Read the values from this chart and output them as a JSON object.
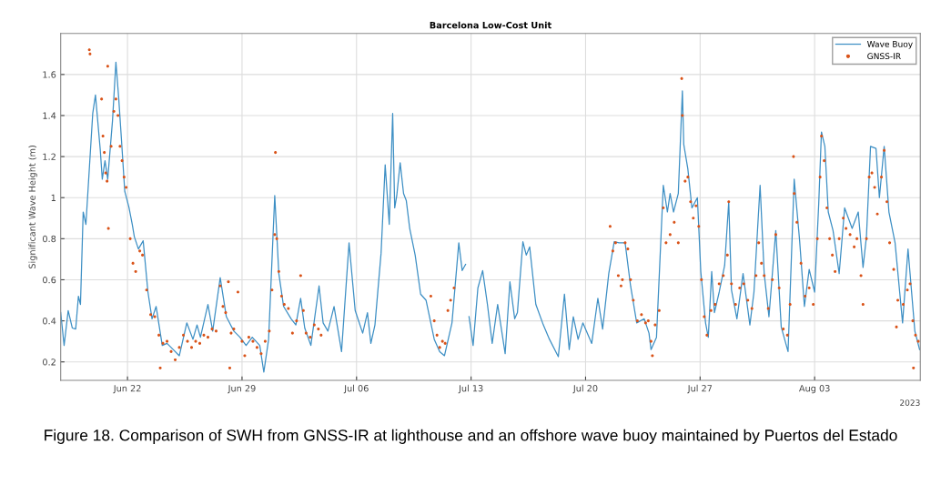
{
  "chart_data": {
    "type": "line",
    "title": "Barcelona Low-Cost Unit",
    "ylabel": "Significant Wave Height (m)",
    "annotations": [
      "2023",
      "Figure 18. Comparison of SWH from GNSS-IR at lighthouse and an offshore wave buoy maintained by Puertos del Estado"
    ],
    "xlim": [
      "2023-06-17T22:00",
      "2023-08-09T11:00"
    ],
    "xticks": [
      {
        "value": "2023-06-22",
        "label": "Jun 22"
      },
      {
        "value": "2023-06-29",
        "label": "Jun 29"
      },
      {
        "value": "2023-07-06",
        "label": "Jul 06"
      },
      {
        "value": "2023-07-13",
        "label": "Jul 13"
      },
      {
        "value": "2023-07-20",
        "label": "Jul 20"
      },
      {
        "value": "2023-07-27",
        "label": "Jul 27"
      },
      {
        "value": "2023-08-03",
        "label": "Aug 03"
      }
    ],
    "ylim": [
      0.11,
      1.8
    ],
    "yticks": [
      0.2,
      0.4,
      0.6,
      0.8,
      1,
      1.2,
      1.4,
      1.6
    ],
    "grid": true,
    "legend": "top right",
    "series": [
      {
        "name": "Wave Buoy",
        "color": "#3d8fc4",
        "marker": "none",
        "x": [
          "2023-06-17T22:00",
          "2023-06-18T03:00",
          "2023-06-18T09:00",
          "2023-06-18T15:00",
          "2023-06-18T20:00",
          "2023-06-19T00:00",
          "2023-06-19T03:00",
          "2023-06-19T07:00",
          "2023-06-19T11:00",
          "2023-06-19T21:00",
          "2023-06-20T01:00",
          "2023-06-20T08:00",
          "2023-06-20T11:00",
          "2023-06-20T15:00",
          "2023-06-20T19:00",
          "2023-06-21T02:00",
          "2023-06-21T07:00",
          "2023-06-21T11:00",
          "2023-06-21T15:00",
          "2023-06-21T20:00",
          "2023-06-22T02:00",
          "2023-06-22T07:00",
          "2023-06-22T10:00",
          "2023-06-22T16:00",
          "2023-06-22T23:00",
          "2023-06-23T06:00",
          "2023-06-23T12:00",
          "2023-06-23T18:00",
          "2023-06-24T03:00",
          "2023-06-24T10:00",
          "2023-06-24T19:00",
          "2023-06-25T04:00",
          "2023-06-25T15:00",
          "2023-06-26T00:00",
          "2023-06-26T06:00",
          "2023-06-26T11:00",
          "2023-06-26T22:00",
          "2023-06-27T05:00",
          "2023-06-27T16:00",
          "2023-06-28T01:00",
          "2023-06-28T12:00",
          "2023-06-28T21:00",
          "2023-06-29T06:00",
          "2023-06-29T15:00",
          "2023-06-30T02:00",
          "2023-06-30T08:00",
          "2023-06-30T15:00",
          "2023-07-01T00:00",
          "2023-07-01T06:00",
          "2023-07-01T13:00",
          "2023-07-02T00:00",
          "2023-07-02T07:00",
          "2023-07-02T14:00",
          "2023-07-02T20:00",
          "2023-07-03T05:00",
          "2023-07-03T17:00",
          "2023-07-03T23:00",
          "2023-07-04T06:00",
          "2023-07-04T15:00",
          "2023-07-05T02:00",
          "2023-07-05T13:00",
          "2023-07-05T22:00",
          "2023-07-06T09:00",
          "2023-07-06T16:00",
          "2023-07-06T21:00",
          "2023-07-07T03:00",
          "2023-07-07T12:00",
          "2023-07-07T18:00",
          "2023-07-08T00:00",
          "2023-07-08T05:00",
          "2023-07-08T08:00",
          "2023-07-08T11:00",
          "2023-07-08T16:00",
          "2023-07-08T21:00",
          "2023-07-09T01:00",
          "2023-07-09T06:00",
          "2023-07-09T14:00",
          "2023-07-09T22:00",
          "2023-07-10T06:00",
          "2023-07-10T18:00",
          "2023-07-11T02:00",
          "2023-07-11T09:00",
          "2023-07-11T20:00",
          "2023-07-12T06:00",
          "2023-07-12T11:00",
          "2023-07-12T16:00",
          "2023-07-12T18:00",
          "2023-07-12T21:00",
          "2023-07-13T03:00",
          "2023-07-13T10:00",
          "2023-07-13T17:00",
          "2023-07-14T00:00",
          "2023-07-14T07:00",
          "2023-07-14T15:00",
          "2023-07-15T02:00",
          "2023-07-15T09:00",
          "2023-07-15T16:00",
          "2023-07-15T20:00",
          "2023-07-16T04:00",
          "2023-07-16T09:00",
          "2023-07-16T14:00",
          "2023-07-16T23:00",
          "2023-07-17T10:00",
          "2023-07-17T19:00",
          "2023-07-18T08:00",
          "2023-07-18T17:00",
          "2023-07-19T00:00",
          "2023-07-19T06:00",
          "2023-07-19T13:00",
          "2023-07-19T20:00",
          "2023-07-20T09:00",
          "2023-07-20T18:00",
          "2023-07-21T01:00",
          "2023-07-21T10:00",
          "2023-07-21T18:00",
          "2023-07-22T01:00",
          "2023-07-22T10:00",
          "2023-07-22T18:00",
          "2023-07-23T03:00",
          "2023-07-23T14:00",
          "2023-07-23T21:00",
          "2023-07-24T00:00",
          "2023-07-24T08:00",
          "2023-07-24T18:00",
          "2023-07-25T00:00",
          "2023-07-25T04:00",
          "2023-07-25T09:00",
          "2023-07-25T16:00",
          "2023-07-25T22:00",
          "2023-07-26T00:00",
          "2023-07-26T06:00",
          "2023-07-26T12:00",
          "2023-07-26T20:00",
          "2023-07-27T01:00",
          "2023-07-27T08:00",
          "2023-07-27T12:00",
          "2023-07-27T17:00",
          "2023-07-27T21:00",
          "2023-07-28T04:00",
          "2023-07-28T12:00",
          "2023-07-28T18:00",
          "2023-07-28T22:00",
          "2023-07-29T06:00",
          "2023-07-29T15:00",
          "2023-07-30T01:00",
          "2023-07-30T07:00",
          "2023-07-30T16:00",
          "2023-07-30T22:00",
          "2023-07-31T05:00",
          "2023-07-31T15:00",
          "2023-07-31T23:00",
          "2023-08-01T09:00",
          "2023-08-01T18:00",
          "2023-08-02T02:00",
          "2023-08-02T09:00",
          "2023-08-02T16:00",
          "2023-08-03T00:00",
          "2023-08-03T06:00",
          "2023-08-03T10:00",
          "2023-08-03T15:00",
          "2023-08-03T20:00",
          "2023-08-04T03:00",
          "2023-08-04T12:00",
          "2023-08-04T20:00",
          "2023-08-05T07:00",
          "2023-08-05T16:00",
          "2023-08-05T23:00",
          "2023-08-06T04:00",
          "2023-08-06T10:00",
          "2023-08-06T18:00",
          "2023-08-06T23:00",
          "2023-08-07T06:00",
          "2023-08-07T13:00",
          "2023-08-07T22:00",
          "2023-08-08T09:00",
          "2023-08-08T17:00",
          "2023-08-08T20:00",
          "2023-08-09T03:00",
          "2023-08-09T10:00"
        ],
        "values": [
          0.44,
          0.28,
          0.45,
          0.365,
          0.36,
          0.52,
          0.48,
          0.93,
          0.87,
          1.41,
          1.5,
          1.235,
          1.09,
          1.18,
          1.09,
          1.375,
          1.66,
          1.49,
          1.29,
          1.03,
          0.955,
          0.87,
          0.81,
          0.75,
          0.79,
          0.54,
          0.41,
          0.47,
          0.28,
          0.29,
          0.26,
          0.23,
          0.39,
          0.31,
          0.38,
          0.32,
          0.48,
          0.35,
          0.61,
          0.42,
          0.35,
          0.32,
          0.28,
          0.32,
          0.28,
          0.15,
          0.31,
          1.01,
          0.63,
          0.47,
          0.41,
          0.38,
          0.51,
          0.365,
          0.28,
          0.57,
          0.39,
          0.35,
          0.47,
          0.25,
          0.78,
          0.45,
          0.34,
          0.44,
          0.29,
          0.38,
          0.73,
          1.16,
          0.87,
          1.41,
          0.95,
          1.01,
          1.17,
          1.02,
          0.985,
          0.85,
          0.72,
          0.53,
          0.5,
          0.31,
          0.25,
          0.23,
          0.39,
          0.78,
          0.645,
          0.675,
          null,
          0.42,
          0.28,
          0.56,
          0.645,
          0.48,
          0.29,
          0.48,
          0.24,
          0.59,
          0.41,
          0.44,
          0.785,
          0.72,
          0.76,
          0.48,
          0.38,
          0.31,
          0.225,
          0.53,
          0.26,
          0.42,
          0.31,
          0.39,
          0.29,
          0.51,
          0.36,
          0.63,
          0.785,
          0.78,
          0.78,
          0.57,
          0.39,
          0.41,
          0.34,
          0.26,
          0.32,
          1.06,
          0.93,
          1.02,
          0.93,
          1.02,
          1.52,
          1.26,
          1.14,
          0.95,
          1.0,
          0.64,
          0.39,
          0.32,
          0.64,
          0.44,
          0.54,
          0.67,
          0.98,
          0.55,
          0.41,
          0.63,
          0.38,
          0.54,
          1.06,
          0.63,
          0.42,
          0.84,
          0.37,
          0.25,
          1.09,
          0.79,
          0.47,
          0.65,
          0.54,
          0.97,
          1.32,
          1.25,
          0.93,
          0.84,
          0.63,
          0.95,
          0.85,
          0.93,
          0.66,
          0.81,
          1.25,
          1.24,
          1.0,
          1.25,
          0.93,
          0.78,
          0.39,
          0.75,
          0.63,
          0.35,
          0.26
        ]
      },
      {
        "name": "GNSS-IR",
        "type": "scatter",
        "color": "#d95319",
        "marker": "circle",
        "x": [
          "2023-06-19T16:00",
          "2023-06-19T17:00",
          "2023-06-20T10:00",
          "2023-06-20T12:00",
          "2023-06-20T14:00",
          "2023-06-20T16:00",
          "2023-06-20T18:00",
          "2023-06-20T20:00",
          "2023-06-20T19:00",
          "2023-06-21T00:00",
          "2023-06-21T04:00",
          "2023-06-21T07:00",
          "2023-06-21T10:00",
          "2023-06-21T13:00",
          "2023-06-21T16:00",
          "2023-06-21T19:00",
          "2023-06-21T22:00",
          "2023-06-22T04:00",
          "2023-06-22T08:00",
          "2023-06-22T12:00",
          "2023-06-22T18:00",
          "2023-06-22T22:00",
          "2023-06-23T04:00",
          "2023-06-23T10:00",
          "2023-06-23T16:00",
          "2023-06-23T22:00",
          "2023-06-24T00:00",
          "2023-06-24T04:00",
          "2023-06-24T10:00",
          "2023-06-24T16:00",
          "2023-06-24T22:00",
          "2023-06-25T04:00",
          "2023-06-25T10:00",
          "2023-06-25T16:00",
          "2023-06-25T22:00",
          "2023-06-26T04:00",
          "2023-06-26T10:00",
          "2023-06-26T16:00",
          "2023-06-26T22:00",
          "2023-06-27T04:00",
          "2023-06-27T10:00",
          "2023-06-27T16:00",
          "2023-06-27T20:00",
          "2023-06-28T00:00",
          "2023-06-28T04:00",
          "2023-06-28T06:00",
          "2023-06-28T08:00",
          "2023-06-28T12:00",
          "2023-06-28T18:00",
          "2023-06-29T00:00",
          "2023-06-29T04:00",
          "2023-06-29T10:00",
          "2023-06-29T16:00",
          "2023-06-29T22:00",
          "2023-06-30T04:00",
          "2023-06-30T10:00",
          "2023-06-30T16:00",
          "2023-06-30T20:00",
          "2023-07-01T00:00",
          "2023-07-01T01:00",
          "2023-07-01T03:00",
          "2023-07-01T06:00",
          "2023-07-01T10:00",
          "2023-07-01T14:00",
          "2023-07-01T20:00",
          "2023-07-02T02:00",
          "2023-07-02T08:00",
          "2023-07-02T14:00",
          "2023-07-02T18:00",
          "2023-07-02T22:00",
          "2023-07-03T04:00",
          "2023-07-03T10:00",
          "2023-07-03T16:00",
          "2023-07-03T20:00",
          "2023-07-10T13:00",
          "2023-07-10T18:00",
          "2023-07-10T22:00",
          "2023-07-11T02:00",
          "2023-07-11T06:00",
          "2023-07-11T10:00",
          "2023-07-11T14:00",
          "2023-07-11T18:00",
          "2023-07-11T23:00",
          "2023-07-21T12:00",
          "2023-07-21T16:00",
          "2023-07-21T20:00",
          "2023-07-22T00:00",
          "2023-07-22T04:00",
          "2023-07-22T06:00",
          "2023-07-22T10:00",
          "2023-07-22T14:00",
          "2023-07-22T18:00",
          "2023-07-22T22:00",
          "2023-07-23T04:00",
          "2023-07-23T10:00",
          "2023-07-23T16:00",
          "2023-07-23T20:00",
          "2023-07-24T00:00",
          "2023-07-24T02:00",
          "2023-07-24T06:00",
          "2023-07-24T12:00",
          "2023-07-24T18:00",
          "2023-07-24T22:00",
          "2023-07-25T04:00",
          "2023-07-25T10:00",
          "2023-07-25T16:00",
          "2023-07-25T21:00",
          "2023-07-25T22:00",
          "2023-07-26T02:00",
          "2023-07-26T06:00",
          "2023-07-26T10:00",
          "2023-07-26T14:00",
          "2023-07-26T18:00",
          "2023-07-26T22:00",
          "2023-07-27T02:00",
          "2023-07-27T06:00",
          "2023-07-27T10:00",
          "2023-07-27T16:00",
          "2023-07-27T22:00",
          "2023-07-28T04:00",
          "2023-07-28T10:00",
          "2023-07-28T16:00",
          "2023-07-28T18:00",
          "2023-07-28T22:00",
          "2023-07-29T04:00",
          "2023-07-29T10:00",
          "2023-07-29T16:00",
          "2023-07-29T22:00",
          "2023-07-30T04:00",
          "2023-07-30T10:00",
          "2023-07-30T14:00",
          "2023-07-30T18:00",
          "2023-07-30T22:00",
          "2023-07-31T04:00",
          "2023-07-31T10:00",
          "2023-07-31T15:00",
          "2023-07-31T20:00",
          "2023-08-01T02:00",
          "2023-08-01T08:00",
          "2023-08-01T12:00",
          "2023-08-01T17:00",
          "2023-08-01T18:00",
          "2023-08-01T22:00",
          "2023-08-02T04:00",
          "2023-08-02T10:00",
          "2023-08-02T16:00",
          "2023-08-02T22:00",
          "2023-08-03T04:00",
          "2023-08-03T08:00",
          "2023-08-03T10:00",
          "2023-08-03T14:00",
          "2023-08-03T18:00",
          "2023-08-03T22:00",
          "2023-08-04T02:00",
          "2023-08-04T06:00",
          "2023-08-04T12:00",
          "2023-08-04T18:00",
          "2023-08-04T22:00",
          "2023-08-05T04:00",
          "2023-08-05T10:00",
          "2023-08-05T14:00",
          "2023-08-05T20:00",
          "2023-08-05T23:00",
          "2023-08-06T04:00",
          "2023-08-06T08:00",
          "2023-08-06T12:00",
          "2023-08-06T16:00",
          "2023-08-06T20:00",
          "2023-08-07T02:00",
          "2023-08-07T06:00",
          "2023-08-07T10:00",
          "2023-08-07T14:00",
          "2023-08-07T20:00",
          "2023-08-08T00:00",
          "2023-08-08T02:00",
          "2023-08-08T10:00",
          "2023-08-08T16:00",
          "2023-08-08T20:00",
          "2023-08-09T00:00",
          "2023-08-09T01:00",
          "2023-08-09T04:00",
          "2023-08-09T08:00"
        ],
        "values": [
          1.72,
          1.7,
          1.48,
          1.3,
          1.22,
          1.12,
          1.08,
          0.85,
          1.64,
          1.25,
          1.42,
          1.48,
          1.4,
          1.25,
          1.18,
          1.1,
          1.05,
          0.8,
          0.68,
          0.64,
          0.74,
          0.72,
          0.55,
          0.43,
          0.42,
          0.33,
          0.17,
          0.29,
          0.3,
          0.25,
          0.21,
          0.27,
          0.33,
          0.3,
          0.27,
          0.3,
          0.29,
          0.33,
          0.32,
          0.36,
          0.35,
          0.57,
          0.47,
          0.44,
          0.59,
          0.17,
          0.34,
          0.36,
          0.54,
          0.3,
          0.23,
          0.32,
          0.3,
          0.27,
          0.24,
          0.3,
          0.35,
          0.55,
          0.82,
          1.22,
          0.8,
          0.64,
          0.52,
          0.48,
          0.46,
          0.34,
          0.4,
          0.62,
          0.45,
          0.34,
          0.32,
          0.38,
          0.36,
          0.33,
          0.52,
          0.4,
          0.33,
          0.27,
          0.3,
          0.29,
          0.45,
          0.5,
          0.56,
          0.86,
          0.74,
          0.78,
          0.62,
          0.57,
          0.6,
          0.78,
          0.75,
          0.6,
          0.5,
          0.4,
          0.43,
          0.39,
          0.4,
          0.3,
          0.23,
          0.38,
          0.45,
          0.95,
          0.78,
          0.82,
          0.88,
          0.78,
          1.58,
          1.4,
          1.08,
          1.1,
          0.98,
          0.9,
          0.96,
          0.86,
          0.6,
          0.42,
          0.33,
          0.45,
          0.48,
          0.58,
          0.62,
          0.72,
          0.98,
          0.58,
          0.48,
          0.56,
          0.58,
          0.5,
          0.46,
          0.62,
          0.78,
          0.68,
          0.62,
          0.46,
          0.6,
          0.82,
          0.56,
          0.36,
          0.33,
          0.48,
          1.2,
          1.02,
          0.88,
          0.68,
          0.52,
          0.56,
          0.48,
          0.8,
          1.1,
          1.3,
          1.18,
          0.95,
          0.8,
          0.72,
          0.64,
          0.8,
          0.9,
          0.85,
          0.82,
          0.76,
          0.8,
          0.62,
          0.48,
          0.8,
          1.1,
          1.12,
          1.05,
          0.92,
          1.1,
          1.23,
          0.98,
          0.78,
          0.65,
          0.37,
          0.5,
          0.48,
          0.55,
          0.58,
          0.4,
          0.17,
          0.33,
          0.3
        ]
      }
    ]
  }
}
